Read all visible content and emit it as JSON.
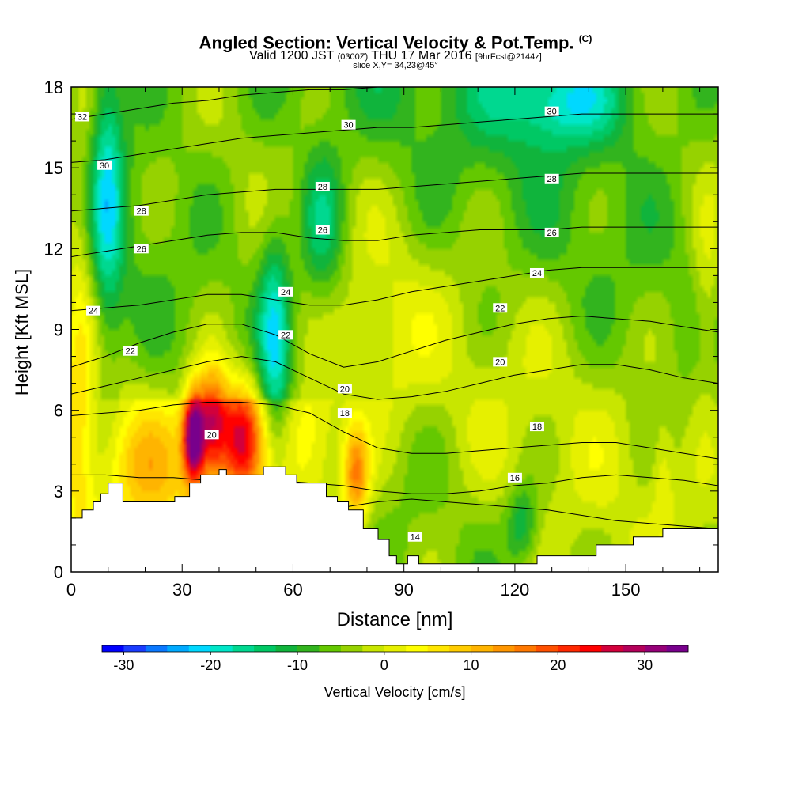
{
  "chart_data": {
    "type": "heatmap",
    "title": "Angled Section: Vertical Velocity & Pot.Temp.",
    "title_unit": "(C)",
    "subtitle": {
      "valid": "Valid 1200 JST",
      "utc": "(0300Z)",
      "date": "THU 17 Mar 2016",
      "fcst": "[9hrFcst@2144z]"
    },
    "slice_label": "slice X,Y= 34,23@45°",
    "xlabel": "Distance [nm]",
    "ylabel": "Height [Kft MSL]",
    "xlim": [
      0,
      175
    ],
    "ylim": [
      0,
      18
    ],
    "x_ticks": [
      0,
      30,
      60,
      90,
      120,
      150
    ],
    "y_ticks": [
      0,
      3,
      6,
      9,
      12,
      15,
      18
    ],
    "colorbar": {
      "label": "Vertical Velocity [cm/s]",
      "range": [
        -32.5,
        35
      ],
      "step": 2.5,
      "tick_values": [
        -30,
        -20,
        -10,
        0,
        10,
        20,
        30
      ],
      "colors": [
        "#0000ff",
        "#1a3cff",
        "#0a78ff",
        "#00aaff",
        "#00d8ff",
        "#00e6c8",
        "#00d890",
        "#00c864",
        "#10b43c",
        "#32b41e",
        "#64c800",
        "#96d200",
        "#c8e600",
        "#e6f000",
        "#ffff00",
        "#ffe600",
        "#ffcc00",
        "#ffb400",
        "#ff9600",
        "#ff7800",
        "#ff5000",
        "#ff2800",
        "#ff0000",
        "#d2003c",
        "#b4005a",
        "#960078",
        "#78008c"
      ]
    },
    "terrain_kft": [
      [
        0,
        2.0
      ],
      [
        3,
        2.0
      ],
      [
        3,
        2.3
      ],
      [
        6,
        2.3
      ],
      [
        6,
        2.6
      ],
      [
        8,
        2.6
      ],
      [
        8,
        2.9
      ],
      [
        10,
        2.9
      ],
      [
        10,
        3.3
      ],
      [
        14,
        3.3
      ],
      [
        14,
        2.6
      ],
      [
        28,
        2.6
      ],
      [
        28,
        2.8
      ],
      [
        32,
        2.8
      ],
      [
        32,
        3.3
      ],
      [
        35,
        3.3
      ],
      [
        35,
        3.6
      ],
      [
        40,
        3.6
      ],
      [
        40,
        3.8
      ],
      [
        42,
        3.8
      ],
      [
        42,
        3.6
      ],
      [
        52,
        3.6
      ],
      [
        52,
        3.9
      ],
      [
        58,
        3.9
      ],
      [
        58,
        3.6
      ],
      [
        61,
        3.6
      ],
      [
        61,
        3.3
      ],
      [
        69,
        3.3
      ],
      [
        69,
        2.8
      ],
      [
        72,
        2.8
      ],
      [
        72,
        2.6
      ],
      [
        75,
        2.6
      ],
      [
        75,
        2.3
      ],
      [
        79,
        2.3
      ],
      [
        79,
        1.6
      ],
      [
        83,
        1.6
      ],
      [
        83,
        1.2
      ],
      [
        86,
        1.2
      ],
      [
        86,
        0.6
      ],
      [
        88,
        0.6
      ],
      [
        88,
        0.3
      ],
      [
        91,
        0.3
      ],
      [
        91,
        0.6
      ],
      [
        94,
        0.6
      ],
      [
        94,
        0.3
      ],
      [
        126,
        0.3
      ],
      [
        126,
        0.6
      ],
      [
        142,
        0.6
      ],
      [
        142,
        1.0
      ],
      [
        152,
        1.0
      ],
      [
        152,
        1.3
      ],
      [
        160,
        1.3
      ],
      [
        160,
        1.6
      ],
      [
        175,
        1.6
      ]
    ],
    "isentropes": [
      {
        "label": "14",
        "y": [
          0.5,
          0.6,
          0.7,
          0.9,
          1.0,
          1.2,
          1.5,
          2.0,
          2.4,
          2.6,
          2.7,
          2.6,
          2.5,
          2.4,
          2.3,
          2.1,
          1.9,
          1.8,
          1.7,
          1.6
        ]
      },
      {
        "label": "16",
        "y": [
          3.6,
          3.6,
          3.5,
          3.5,
          3.4,
          3.4,
          3.4,
          3.3,
          3.2,
          3.0,
          2.9,
          2.9,
          3.0,
          3.2,
          3.3,
          3.5,
          3.6,
          3.5,
          3.4,
          3.2
        ]
      },
      {
        "label": "18",
        "y": [
          5.8,
          5.9,
          6.0,
          6.2,
          6.3,
          6.3,
          6.2,
          5.9,
          5.2,
          4.6,
          4.4,
          4.4,
          4.5,
          4.6,
          4.7,
          4.8,
          4.8,
          4.6,
          4.4,
          4.2
        ]
      },
      {
        "label": "20",
        "y": [
          6.6,
          6.9,
          7.2,
          7.5,
          7.8,
          8.0,
          7.8,
          7.2,
          6.6,
          6.4,
          6.5,
          6.7,
          7.0,
          7.3,
          7.5,
          7.7,
          7.7,
          7.5,
          7.2,
          7.0
        ]
      },
      {
        "label": "22",
        "y": [
          7.6,
          8.0,
          8.5,
          8.9,
          9.2,
          9.2,
          8.8,
          8.1,
          7.6,
          7.8,
          8.2,
          8.6,
          8.9,
          9.2,
          9.4,
          9.5,
          9.4,
          9.3,
          9.1,
          8.9
        ]
      },
      {
        "label": "24",
        "y": [
          9.7,
          9.8,
          9.9,
          10.1,
          10.3,
          10.3,
          10.1,
          9.9,
          9.9,
          10.1,
          10.4,
          10.6,
          10.8,
          11.0,
          11.2,
          11.3,
          11.3,
          11.3,
          11.3,
          11.3
        ]
      },
      {
        "label": "26",
        "y": [
          11.7,
          11.9,
          12.1,
          12.3,
          12.5,
          12.6,
          12.6,
          12.4,
          12.3,
          12.3,
          12.5,
          12.6,
          12.7,
          12.7,
          12.7,
          12.8,
          12.8,
          12.8,
          12.8,
          12.8
        ]
      },
      {
        "label": "28",
        "y": [
          13.4,
          13.5,
          13.6,
          13.8,
          14.0,
          14.1,
          14.2,
          14.2,
          14.2,
          14.2,
          14.3,
          14.4,
          14.5,
          14.6,
          14.7,
          14.8,
          14.8,
          14.8,
          14.8,
          14.8
        ]
      },
      {
        "label": "30",
        "y": [
          15.2,
          15.3,
          15.5,
          15.7,
          15.9,
          16.1,
          16.2,
          16.3,
          16.4,
          16.5,
          16.5,
          16.6,
          16.7,
          16.8,
          16.9,
          17.0,
          17.0,
          17.0,
          17.0,
          17.0
        ]
      },
      {
        "label": "32",
        "y": [
          16.8,
          17.0,
          17.2,
          17.4,
          17.5,
          17.7,
          17.8,
          17.9,
          17.9,
          18.0,
          18.0,
          18.0,
          18.0,
          18.0,
          18.0,
          18.0,
          18.0,
          18.0,
          18.0,
          18.0
        ]
      }
    ],
    "contour_labels": [
      {
        "text": "32",
        "x": 3,
        "y": 16.9
      },
      {
        "text": "30",
        "x": 9,
        "y": 15.1
      },
      {
        "text": "28",
        "x": 19,
        "y": 13.4
      },
      {
        "text": "26",
        "x": 19,
        "y": 12.0
      },
      {
        "text": "24",
        "x": 6,
        "y": 9.7
      },
      {
        "text": "22",
        "x": 16,
        "y": 8.2
      },
      {
        "text": "30",
        "x": 75,
        "y": 16.6
      },
      {
        "text": "28",
        "x": 68,
        "y": 14.3
      },
      {
        "text": "26",
        "x": 68,
        "y": 12.7
      },
      {
        "text": "24",
        "x": 58,
        "y": 10.4
      },
      {
        "text": "22",
        "x": 58,
        "y": 8.8
      },
      {
        "text": "20",
        "x": 74,
        "y": 6.8
      },
      {
        "text": "18",
        "x": 74,
        "y": 5.9
      },
      {
        "text": "20",
        "x": 38,
        "y": 5.1
      },
      {
        "text": "30",
        "x": 130,
        "y": 17.1
      },
      {
        "text": "28",
        "x": 130,
        "y": 14.6
      },
      {
        "text": "26",
        "x": 130,
        "y": 12.6
      },
      {
        "text": "24",
        "x": 126,
        "y": 11.1
      },
      {
        "text": "22",
        "x": 116,
        "y": 9.8
      },
      {
        "text": "20",
        "x": 116,
        "y": 7.8
      },
      {
        "text": "18",
        "x": 126,
        "y": 5.4
      },
      {
        "text": "16",
        "x": 120,
        "y": 3.5
      },
      {
        "text": "14",
        "x": 93,
        "y": 1.3
      }
    ],
    "velocity_features": [
      {
        "x": 33,
        "y": 5.0,
        "sx": 2.0,
        "sy": 1.2,
        "value": 34
      },
      {
        "x": 38,
        "y": 5.6,
        "sx": 3.0,
        "sy": 1.5,
        "value": 25
      },
      {
        "x": 46,
        "y": 5.0,
        "sx": 4.0,
        "sy": 1.5,
        "value": 24
      },
      {
        "x": 77,
        "y": 3.6,
        "sx": 2.5,
        "sy": 1.3,
        "value": 18
      },
      {
        "x": 65,
        "y": 4.8,
        "sx": 5.0,
        "sy": 1.6,
        "value": 8
      },
      {
        "x": 20,
        "y": 4.0,
        "sx": 8.0,
        "sy": 1.6,
        "value": 8
      },
      {
        "x": 2,
        "y": 8.0,
        "sx": 3.0,
        "sy": 8.0,
        "value": 8
      },
      {
        "x": 10,
        "y": 14.0,
        "sx": 3.0,
        "sy": 4.0,
        "value": -12
      },
      {
        "x": 55,
        "y": 8.5,
        "sx": 3.0,
        "sy": 3.0,
        "value": -14
      },
      {
        "x": 68,
        "y": 12.8,
        "sx": 4.0,
        "sy": 2.0,
        "value": -10
      },
      {
        "x": 133,
        "y": 17.5,
        "sx": 12.0,
        "sy": 1.2,
        "value": -13
      },
      {
        "x": 85,
        "y": 8.8,
        "sx": 7.0,
        "sy": 2.2,
        "value": 4
      },
      {
        "x": 172,
        "y": 10.0,
        "sx": 3.0,
        "sy": 2.5,
        "value": 6
      },
      {
        "x": 160,
        "y": 3.8,
        "sx": 2.0,
        "sy": 1.5,
        "value": 5
      },
      {
        "x": 122,
        "y": 1.8,
        "sx": 3.0,
        "sy": 1.0,
        "value": -9
      }
    ]
  }
}
